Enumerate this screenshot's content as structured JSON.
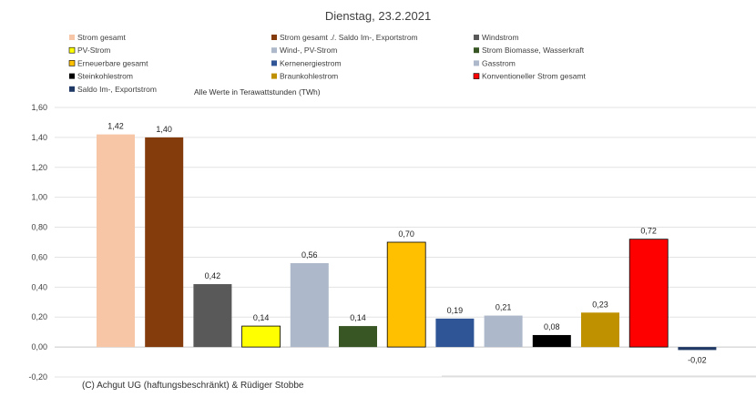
{
  "chart_data": {
    "type": "bar",
    "title": "Dienstag, 23.2.2021",
    "note": "Alle Werte in Terawattstunden (TWh)",
    "footer": "(C) Achgut UG (haftungsbeschränkt) & Rüdiger Stobbe",
    "ylim": [
      -0.2,
      1.6
    ],
    "yticks": [
      "-0,20",
      "0,00",
      "0,20",
      "0,40",
      "0,60",
      "0,80",
      "1,00",
      "1,20",
      "1,40",
      "1,60"
    ],
    "ytick_values": [
      -0.2,
      0,
      0.2,
      0.4,
      0.6,
      0.8,
      1.0,
      1.2,
      1.4,
      1.6
    ],
    "grid": true,
    "legend_position": "top",
    "series": [
      {
        "name": "Strom gesamt",
        "value": 1.42,
        "label": "1,42",
        "color": "#f7c6a7"
      },
      {
        "name": "Strom gesamt ./. Saldo Im-, Exportstrom",
        "value": 1.4,
        "label": "1,40",
        "color": "#843c0c"
      },
      {
        "name": "Windstrom",
        "value": 0.42,
        "label": "0,42",
        "color": "#595959"
      },
      {
        "name": "PV-Strom",
        "value": 0.14,
        "label": "0,14",
        "color": "#ffff00"
      },
      {
        "name": "Wind-, PV-Strom",
        "value": 0.56,
        "label": "0,56",
        "color": "#adb9ca"
      },
      {
        "name": "Strom Biomasse, Wasserkraft",
        "value": 0.14,
        "label": "0,14",
        "color": "#375623"
      },
      {
        "name": "Erneuerbare gesamt",
        "value": 0.7,
        "label": "0,70",
        "color": "#ffc000"
      },
      {
        "name": "Kernenergiestrom",
        "value": 0.19,
        "label": "0,19",
        "color": "#2f5597"
      },
      {
        "name": "Gasstrom",
        "value": 0.21,
        "label": "0,21",
        "color": "#adb9ca"
      },
      {
        "name": "Steinkohlestrom",
        "value": 0.08,
        "label": "0,08",
        "color": "#000000"
      },
      {
        "name": "Braunkohlestrom",
        "value": 0.23,
        "label": "0,23",
        "color": "#bf9000"
      },
      {
        "name": "Konventioneller Strom gesamt",
        "value": 0.72,
        "label": "0,72",
        "color": "#ff0000"
      },
      {
        "name": "Saldo Im-, Exportstrom",
        "value": -0.02,
        "label": "-0,02",
        "color": "#1f3864"
      }
    ]
  }
}
